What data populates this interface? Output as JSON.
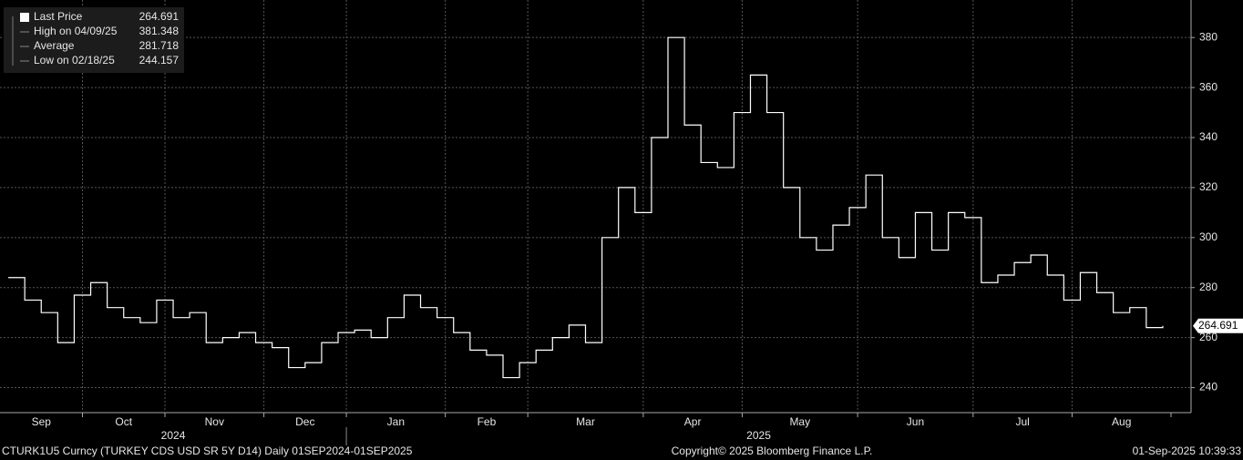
{
  "chart_data": {
    "type": "line",
    "color": "#ffffff",
    "grid": true,
    "legend_position": "upper left",
    "legend": [
      {
        "label": "Last Price",
        "value": "264.691"
      },
      {
        "label": "High on 04/09/25",
        "value": "381.348"
      },
      {
        "label": "Average",
        "value": "281.718"
      },
      {
        "label": "Low on 02/18/25",
        "value": "244.157"
      }
    ],
    "categories": [
      "Sep",
      null,
      null,
      null,
      null,
      "Oct",
      null,
      null,
      null,
      null,
      "Nov",
      null,
      null,
      null,
      null,
      null,
      "Dec",
      null,
      null,
      null,
      null,
      "Jan",
      null,
      null,
      null,
      null,
      null,
      "Feb",
      null,
      null,
      null,
      null,
      "Mar",
      null,
      null,
      null,
      null,
      null,
      null,
      "Apr",
      null,
      null,
      null,
      null,
      null,
      "May",
      null,
      null,
      null,
      null,
      null,
      null,
      "Jun",
      null,
      null,
      null,
      null,
      null,
      null,
      "Jul",
      null,
      null,
      null,
      null,
      null,
      "Aug",
      null,
      null,
      null,
      null,
      null
    ],
    "years": [
      "2024",
      "2025"
    ],
    "series": [
      {
        "name": "Last Price",
        "color": "#ffffff",
        "values": [
          284,
          275,
          270,
          258,
          277,
          282,
          272,
          268,
          266,
          275,
          268,
          270,
          258,
          260,
          262,
          258,
          256,
          248,
          250,
          258,
          262,
          263,
          260,
          268,
          277,
          272,
          268,
          262,
          255,
          253,
          244,
          250,
          255,
          260,
          265,
          258,
          300,
          320,
          310,
          340,
          380,
          345,
          330,
          328,
          350,
          365,
          350,
          320,
          300,
          295,
          305,
          312,
          325,
          300,
          292,
          310,
          295,
          310,
          308,
          282,
          285,
          290,
          293,
          285,
          275,
          286,
          278,
          270,
          272,
          264,
          264.691
        ]
      }
    ],
    "ylim": [
      230,
      395
    ],
    "yticks": [
      240,
      260,
      280,
      300,
      320,
      340,
      360,
      380
    ],
    "footer": {
      "ticker": "CTURK1U5 Curncy (TURKEY CDS USD SR 5Y D14)  Daily 01SEP2024-01SEP2025",
      "copyright": "Copyright© 2025 Bloomberg Finance L.P.",
      "timestamp": "01-Sep-2025 10:39:33"
    }
  }
}
